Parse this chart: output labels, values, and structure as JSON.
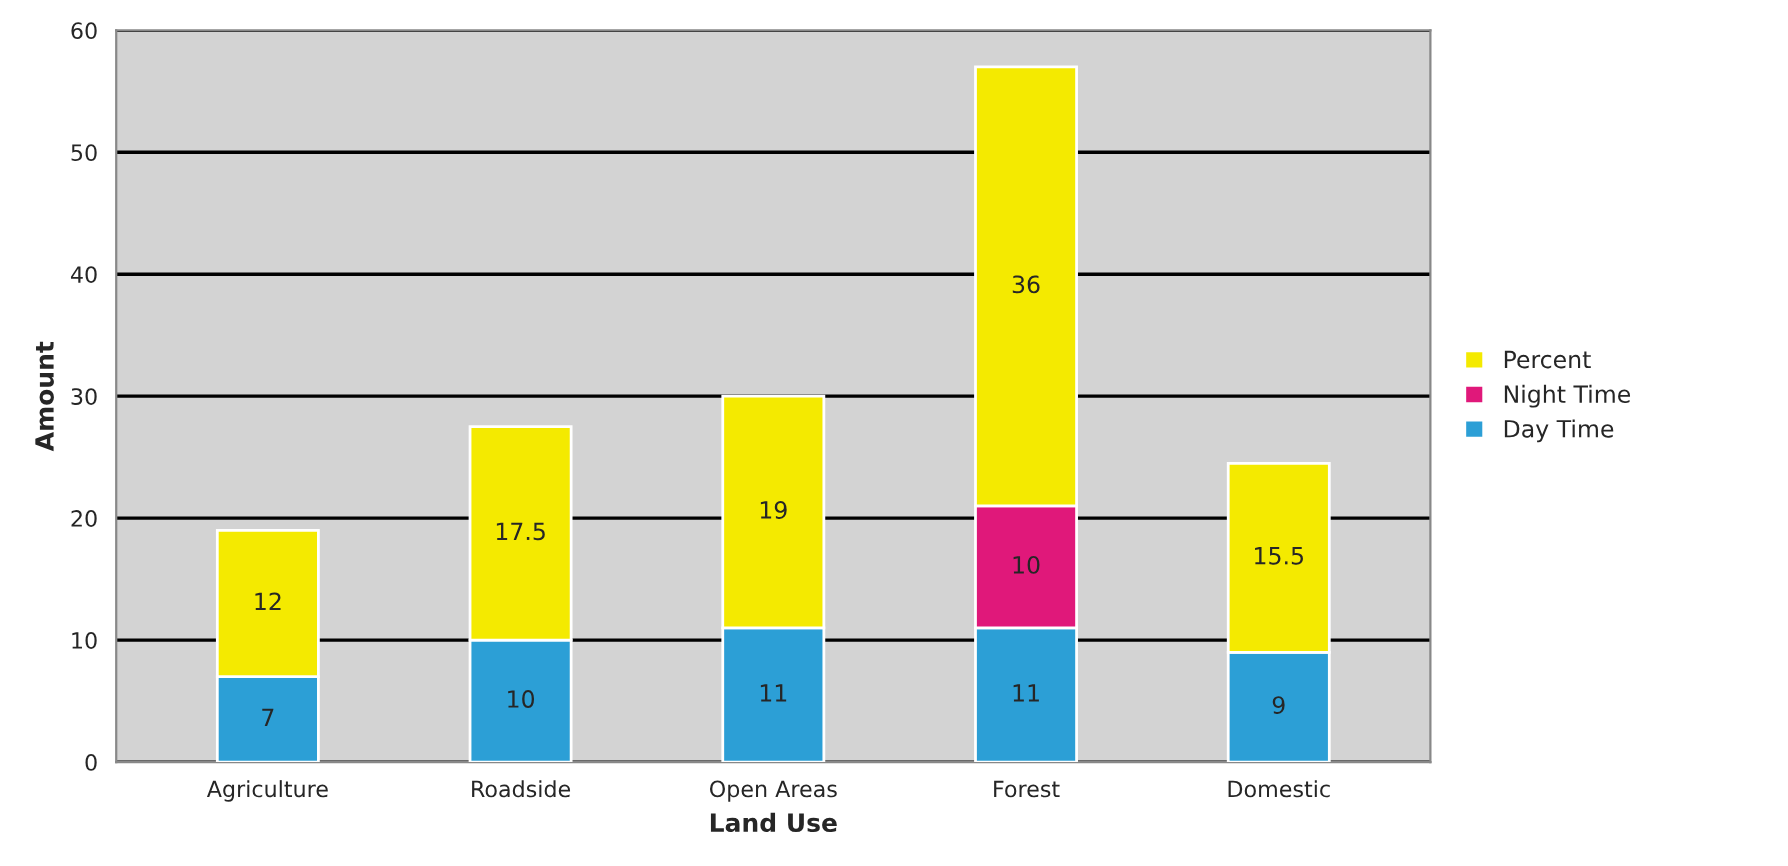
{
  "chart_data": {
    "type": "bar",
    "stacked": true,
    "xlabel": "Land Use",
    "ylabel": "Amount",
    "categories": [
      "Agriculture",
      "Roadside",
      "Open Areas",
      "Forest",
      "Domestic"
    ],
    "series": [
      {
        "name": "Day Time",
        "color": "#2c9fd6",
        "values": [
          7,
          10,
          11,
          11,
          9
        ]
      },
      {
        "name": "Night Time",
        "color": "#e0187a",
        "values": [
          null,
          null,
          null,
          10,
          null
        ]
      },
      {
        "name": "Percent",
        "color": "#f4ea00",
        "values": [
          12,
          17.5,
          19,
          36,
          15.5
        ]
      }
    ],
    "ylim": [
      0,
      60
    ],
    "yticks": [
      0,
      10,
      20,
      30,
      40,
      50,
      60
    ],
    "grid": "y",
    "legend": "right",
    "data_labels": true
  }
}
